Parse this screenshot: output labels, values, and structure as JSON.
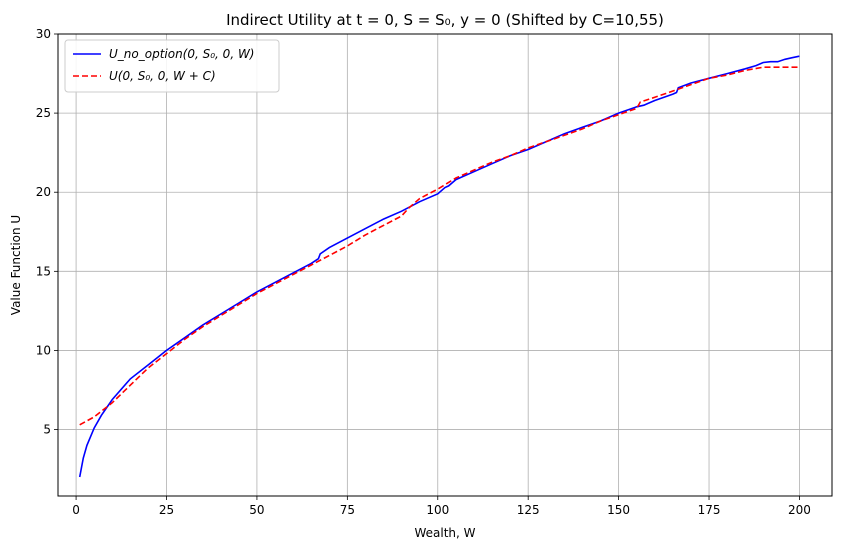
{
  "chart_data": {
    "type": "line",
    "title": "Indirect Utility at t = 0, S = S₀, y = 0 (Shifted by C=10,55)",
    "xlabel": "Wealth, W",
    "ylabel": "Value Function U",
    "xlim": [
      -5,
      209
    ],
    "ylim": [
      0.8,
      30
    ],
    "xticks": [
      0,
      25,
      50,
      75,
      100,
      125,
      150,
      175,
      200
    ],
    "yticks": [
      5,
      10,
      15,
      20,
      25,
      30
    ],
    "grid": true,
    "legend_position": "top-left",
    "series": [
      {
        "name": "U_no_option(0, S₀, 0, W)",
        "color": "#0000ff",
        "style": "solid",
        "x": [
          1,
          2,
          3,
          5,
          7,
          10,
          15,
          20,
          25,
          30,
          35,
          40,
          45,
          50,
          55,
          60,
          65,
          67,
          67.5,
          70,
          75,
          80,
          85,
          90,
          95,
          100,
          102,
          103,
          105,
          110,
          115,
          120,
          125,
          130,
          135,
          140,
          145,
          150,
          155,
          157,
          158,
          160,
          165,
          166,
          166.5,
          170,
          175,
          180,
          185,
          188,
          190,
          192,
          194,
          196,
          198,
          200
        ],
        "y": [
          2.0,
          3.2,
          4.0,
          5.1,
          5.9,
          6.9,
          8.2,
          9.1,
          10.0,
          10.8,
          11.6,
          12.3,
          13.0,
          13.7,
          14.3,
          14.9,
          15.5,
          15.8,
          16.1,
          16.5,
          17.1,
          17.7,
          18.3,
          18.8,
          19.4,
          19.9,
          20.3,
          20.4,
          20.8,
          21.3,
          21.8,
          22.3,
          22.7,
          23.2,
          23.7,
          24.1,
          24.5,
          25.0,
          25.4,
          25.5,
          25.6,
          25.8,
          26.2,
          26.3,
          26.6,
          26.9,
          27.2,
          27.5,
          27.8,
          28.0,
          28.2,
          28.25,
          28.25,
          28.4,
          28.5,
          28.6
        ]
      },
      {
        "name": "U(0, S₀, 0, W + C)",
        "color": "#ff0000",
        "style": "dashed",
        "x": [
          1,
          5,
          10,
          15,
          20,
          25,
          30,
          35,
          40,
          45,
          50,
          55,
          60,
          65,
          70,
          75,
          80,
          85,
          90,
          92,
          95,
          100,
          105,
          110,
          115,
          120,
          125,
          130,
          135,
          140,
          145,
          150,
          155,
          156,
          160,
          165,
          170,
          175,
          180,
          185,
          190,
          195,
          200
        ],
        "y": [
          5.3,
          5.8,
          6.7,
          7.8,
          8.9,
          9.8,
          10.7,
          11.5,
          12.2,
          12.9,
          13.6,
          14.2,
          14.8,
          15.4,
          16.0,
          16.6,
          17.3,
          17.9,
          18.5,
          19.0,
          19.6,
          20.2,
          20.9,
          21.4,
          21.9,
          22.3,
          22.8,
          23.2,
          23.6,
          24.0,
          24.5,
          24.9,
          25.3,
          25.7,
          26.0,
          26.4,
          26.8,
          27.2,
          27.4,
          27.7,
          27.9,
          27.9,
          27.9
        ]
      }
    ]
  }
}
